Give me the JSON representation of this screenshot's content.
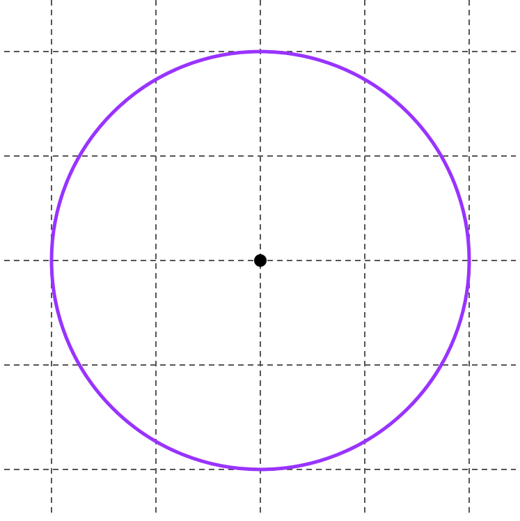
{
  "diagram": {
    "type": "circle-on-grid",
    "grid": {
      "style": "dashed",
      "color": "#555555",
      "columns": 5,
      "rows": 5
    },
    "circle": {
      "color": "#9933ff",
      "center_grid": [
        2,
        2
      ],
      "radius_cells": 2
    },
    "center_point": {
      "color": "#000000"
    }
  }
}
